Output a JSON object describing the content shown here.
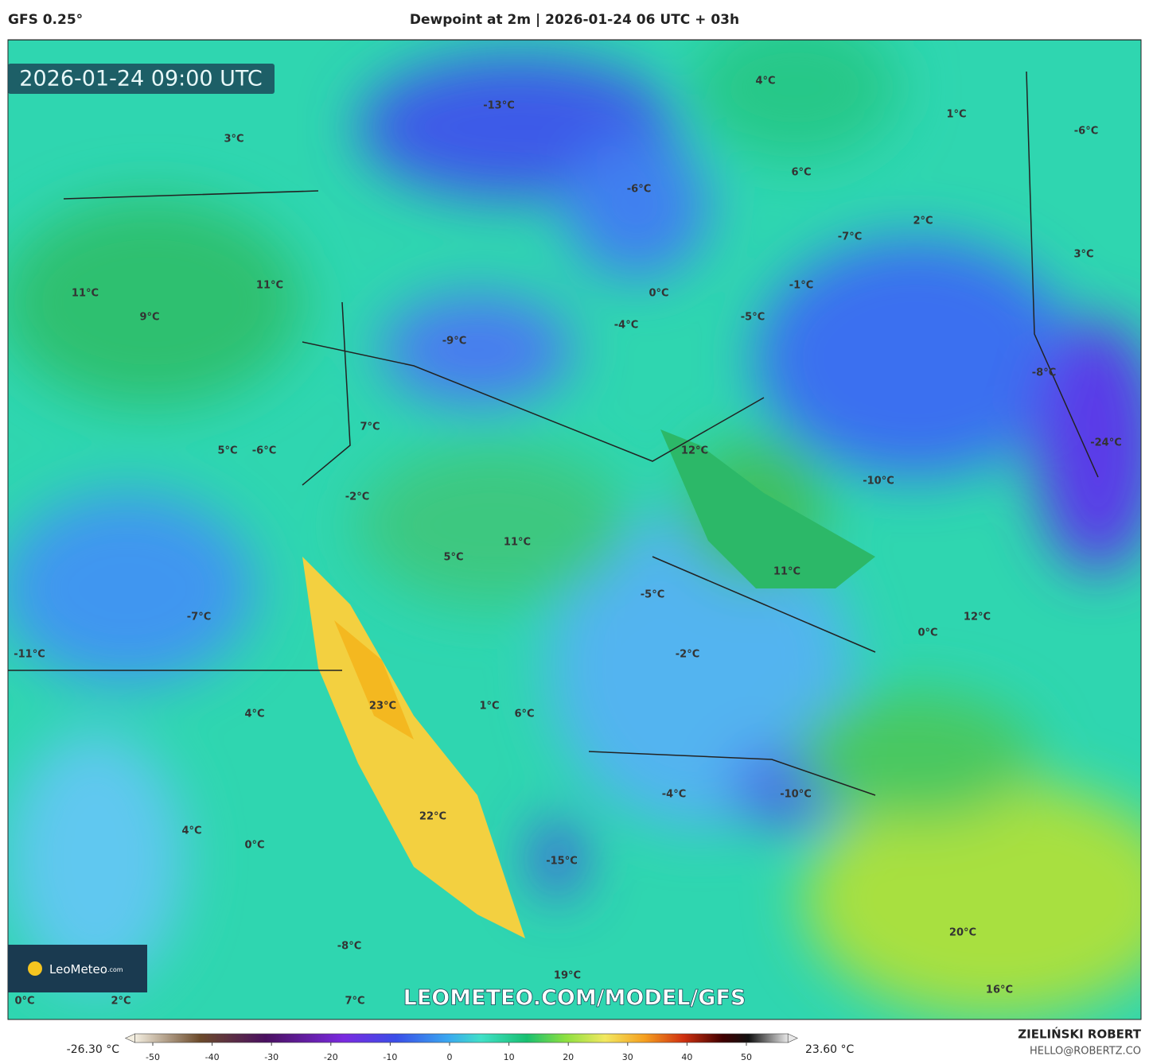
{
  "header": {
    "model": "GFS 0.25°",
    "title": "Dewpoint at 2m | 2026-01-24 06 UTC + 03h"
  },
  "map": {
    "timestamp": "2026-01-24 09:00 UTC",
    "watermark": "LEOMETEO.COM/MODEL/GFS",
    "logo": {
      "name": "LeoMeteo",
      "suffix": ".com"
    },
    "labels": [
      "4°C",
      "-13°C",
      "1°C",
      "-6°C",
      "3°C",
      "6°C",
      "-6°C",
      "2°C",
      "-7°C",
      "3°C",
      "11°C",
      "-1°C",
      "11°C",
      "0°C",
      "9°C",
      "-5°C",
      "-4°C",
      "-9°C",
      "-8°C",
      "7°C",
      "-24°C",
      "5°C",
      "-6°C",
      "12°C",
      "-10°C",
      "-2°C",
      "11°C",
      "5°C",
      "11°C",
      "-5°C",
      "-7°C",
      "12°C",
      "0°C",
      "-11°C",
      "-2°C",
      "23°C",
      "1°C",
      "6°C",
      "4°C",
      "-4°C",
      "-10°C",
      "22°C",
      "4°C",
      "0°C",
      "-15°C",
      "20°C",
      "-8°C",
      "19°C",
      "16°C",
      "0°C",
      "2°C",
      "7°C"
    ]
  },
  "colorbar": {
    "min_label": "-26.30 °C",
    "max_label": "23.60 °C",
    "lim": [
      -53,
      57
    ],
    "ticks": [
      -50,
      -40,
      -30,
      -20,
      -10,
      0,
      10,
      20,
      30,
      40,
      50
    ]
  },
  "footer": {
    "author": "ZIELIŃSKI ROBERT",
    "email": "HELLO@ROBERTZ.CO"
  }
}
